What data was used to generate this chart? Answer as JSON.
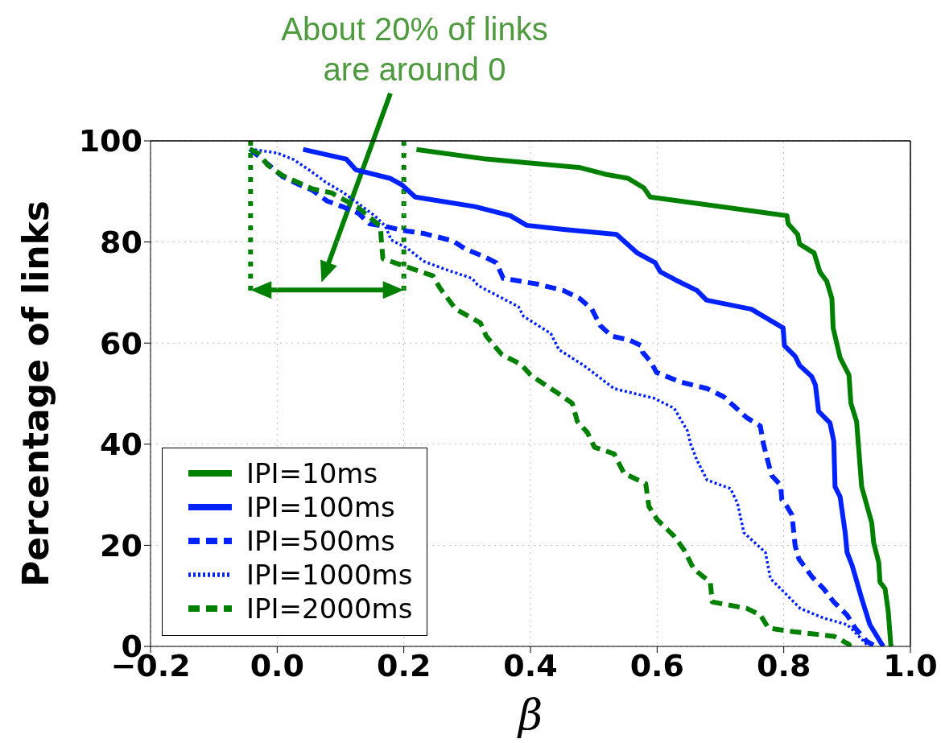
{
  "chart_data": {
    "type": "line",
    "xlabel": "β",
    "ylabel": "Percentage of links",
    "annotations": [
      "About 20% of links\nare around 0"
    ],
    "xlim": [
      -0.2,
      1.0
    ],
    "xticks": [
      {
        "value": -0.2,
        "label": "−0.2"
      },
      {
        "value": 0,
        "label": "0.0"
      },
      {
        "value": 0.2,
        "label": "0.2"
      },
      {
        "value": 0.4,
        "label": "0.4"
      },
      {
        "value": 0.6,
        "label": "0.6"
      },
      {
        "value": 0.8,
        "label": "0.8"
      },
      {
        "value": 1.0,
        "label": "1.0"
      }
    ],
    "ylim": [
      0,
      100
    ],
    "yticks": [
      0,
      20,
      40,
      60,
      80,
      100
    ],
    "grid": true,
    "legend": "bottom left",
    "marker": "none",
    "series": [
      {
        "name": "IPI=10ms",
        "color": "#008000",
        "line_style": "solid",
        "x": [
          0.22,
          0.33,
          0.479,
          0.518,
          0.554,
          0.579,
          0.589,
          0.805,
          0.807,
          0.822,
          0.825,
          0.848,
          0.857,
          0.868,
          0.876,
          0.878,
          0.889,
          0.903,
          0.906,
          0.915,
          0.923,
          0.939,
          0.942,
          0.95,
          0.952,
          0.96,
          0.965,
          0.969,
          0.97
        ],
        "values": [
          98.3,
          96.4,
          94.7,
          93.4,
          92.6,
          90.7,
          88.9,
          85.2,
          83.6,
          81.5,
          79.6,
          77.8,
          74.1,
          72.2,
          68.8,
          63.0,
          57.1,
          53.7,
          48.1,
          44.5,
          31.6,
          24.4,
          20.5,
          16.6,
          12.7,
          11.4,
          6.9,
          0.4,
          0
        ]
      },
      {
        "name": "IPI=100ms",
        "color": "#0022ff",
        "line_style": "solid",
        "x": [
          0.041,
          0.109,
          0.124,
          0.178,
          0.197,
          0.218,
          0.312,
          0.368,
          0.394,
          0.452,
          0.536,
          0.569,
          0.597,
          0.605,
          0.629,
          0.663,
          0.678,
          0.749,
          0.799,
          0.801,
          0.818,
          0.825,
          0.844,
          0.85,
          0.855,
          0.873,
          0.879,
          0.881,
          0.889,
          0.897,
          0.9,
          0.908,
          0.923,
          0.936,
          0.955,
          0.957
        ],
        "values": [
          98.3,
          96.4,
          94.3,
          92.6,
          91.3,
          88.9,
          87.0,
          85.2,
          83.3,
          82.5,
          81.5,
          77.8,
          75.9,
          74.1,
          72.5,
          70.4,
          68.5,
          66.7,
          63.0,
          59.5,
          57.4,
          55.6,
          53.4,
          51.7,
          46.5,
          44.2,
          40.6,
          31.6,
          29.6,
          22.5,
          18.6,
          16.0,
          9.5,
          4.3,
          0.4,
          0
        ]
      },
      {
        "name": "IPI=500ms",
        "color": "#0022ff",
        "line_style": "dashed",
        "x": [
          -0.043,
          0.009,
          0.032,
          0.056,
          0.079,
          0.107,
          0.128,
          0.146,
          0.171,
          0.197,
          0.231,
          0.278,
          0.297,
          0.325,
          0.346,
          0.357,
          0.41,
          0.452,
          0.478,
          0.497,
          0.51,
          0.528,
          0.556,
          0.575,
          0.577,
          0.59,
          0.599,
          0.637,
          0.679,
          0.705,
          0.742,
          0.763,
          0.768,
          0.776,
          0.781,
          0.795,
          0.797,
          0.805,
          0.813,
          0.818,
          0.824,
          0.845,
          0.863,
          0.879,
          0.9,
          0.913,
          0.931,
          0.945
        ],
        "values": [
          98.4,
          92.9,
          91.5,
          90.2,
          88.1,
          86.8,
          85.7,
          83.6,
          83.1,
          82.3,
          81.7,
          80.2,
          78.6,
          77.2,
          75.9,
          72.8,
          71.7,
          70.4,
          68.8,
          66.7,
          63.5,
          61.4,
          60.6,
          59.5,
          58.2,
          56.3,
          54.2,
          52.3,
          51.0,
          49.4,
          45.2,
          43.6,
          40.0,
          36.1,
          33.8,
          31.9,
          29.0,
          27.7,
          26.0,
          19.9,
          17.3,
          13.7,
          11.4,
          8.8,
          6.2,
          3.6,
          1.0,
          0
        ]
      },
      {
        "name": "IPI=1000ms",
        "color": "#0022ff",
        "line_style": "dotted",
        "x": [
          -0.043,
          0,
          0.026,
          0.051,
          0.077,
          0.103,
          0.128,
          0.154,
          0.171,
          0.18,
          0.205,
          0.231,
          0.265,
          0.308,
          0.317,
          0.381,
          0.389,
          0.432,
          0.445,
          0.484,
          0.532,
          0.595,
          0.627,
          0.648,
          0.653,
          0.663,
          0.679,
          0.716,
          0.727,
          0.737,
          0.771,
          0.779,
          0.8,
          0.826,
          0.863,
          0.9,
          0.911,
          0.931,
          0.935
        ],
        "values": [
          98.4,
          97.6,
          96.3,
          94.2,
          91.8,
          89.9,
          87.6,
          85.2,
          83.1,
          80.4,
          78.8,
          76.2,
          74.6,
          72.8,
          71.4,
          67.2,
          65.3,
          61.9,
          58.7,
          55.6,
          51.0,
          49.1,
          47.1,
          42.6,
          40.0,
          36.8,
          32.9,
          31.2,
          28.3,
          22.5,
          18.6,
          13.4,
          10.8,
          7.5,
          5.6,
          4.3,
          3.0,
          0.4,
          0
        ]
      },
      {
        "name": "IPI=2000ms",
        "color": "#008000",
        "line_style": "dashed",
        "x": [
          -0.043,
          -0.028,
          -0.015,
          0.009,
          0.056,
          0.086,
          0.128,
          0.146,
          0.163,
          0.165,
          0.167,
          0.197,
          0.246,
          0.257,
          0.282,
          0.321,
          0.33,
          0.355,
          0.385,
          0.401,
          0.443,
          0.466,
          0.474,
          0.49,
          0.501,
          0.532,
          0.548,
          0.582,
          0.587,
          0.6,
          0.627,
          0.642,
          0.658,
          0.671,
          0.684,
          0.687,
          0.742,
          0.763,
          0.776,
          0.816,
          0.879,
          0.903,
          0.905
        ],
        "values": [
          98.4,
          97.4,
          95.2,
          93.1,
          90.5,
          89.7,
          86.8,
          84.9,
          83.1,
          79.4,
          76.7,
          75.4,
          73.3,
          70.9,
          66.7,
          64.0,
          61.4,
          57.7,
          55.8,
          53.6,
          50.1,
          48.1,
          44.5,
          42.3,
          39.4,
          38.1,
          34.2,
          32.2,
          27.7,
          25.1,
          21.8,
          19.2,
          15.3,
          14.0,
          12.7,
          8.8,
          7.5,
          6.2,
          3.6,
          2.9,
          2.0,
          0.4,
          0
        ]
      }
    ]
  }
}
